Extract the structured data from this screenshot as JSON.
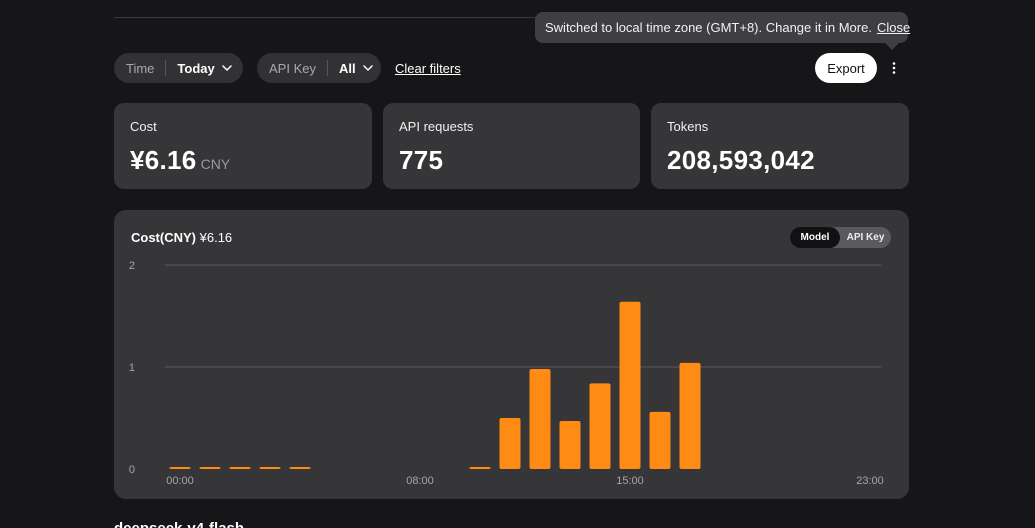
{
  "toast": {
    "message": "Switched to local time zone (GMT+8). Change it in More.",
    "close_label": "Close"
  },
  "filters": {
    "time": {
      "label": "Time",
      "value": "Today"
    },
    "api_key": {
      "label": "API Key",
      "value": "All"
    },
    "clear_label": "Clear filters"
  },
  "toolbar": {
    "export_label": "Export",
    "more_icon": "more-vertical-icon"
  },
  "summary": {
    "cost": {
      "label": "Cost",
      "value": "¥6.16",
      "unit": "CNY"
    },
    "requests": {
      "label": "API requests",
      "value": "775"
    },
    "tokens": {
      "label": "Tokens",
      "value": "208,593,042"
    }
  },
  "chart_panel": {
    "title": "Cost(CNY)",
    "total": "¥6.16",
    "toggle": {
      "active": "Model",
      "inactive": "API Key"
    }
  },
  "chart_data": {
    "type": "bar",
    "title": "Cost(CNY)",
    "xlabel": "",
    "ylabel": "",
    "categories": [
      "00:00",
      "01:00",
      "02:00",
      "03:00",
      "04:00",
      "05:00",
      "06:00",
      "07:00",
      "08:00",
      "09:00",
      "10:00",
      "11:00",
      "12:00",
      "13:00",
      "14:00",
      "15:00",
      "16:00",
      "17:00",
      "18:00",
      "19:00",
      "20:00",
      "21:00",
      "22:00",
      "23:00"
    ],
    "values": [
      0.02,
      0.02,
      0.02,
      0.02,
      0.02,
      0,
      0,
      0,
      0,
      0,
      0.02,
      0.5,
      0.98,
      0.47,
      0.84,
      1.64,
      0.56,
      1.04,
      0,
      0,
      0,
      0,
      0,
      0
    ],
    "ylim": [
      0,
      2
    ],
    "yticks": [
      0,
      1,
      2
    ],
    "xticks_shown": [
      "00:00",
      "08:00",
      "15:00",
      "23:00"
    ],
    "grid": true,
    "bar_color": "#ff8a14"
  },
  "next_section_heading": "deepseek-v4-flash",
  "colors": {
    "background": "#161618",
    "card": "#363639",
    "accent": "#ff8a14"
  }
}
